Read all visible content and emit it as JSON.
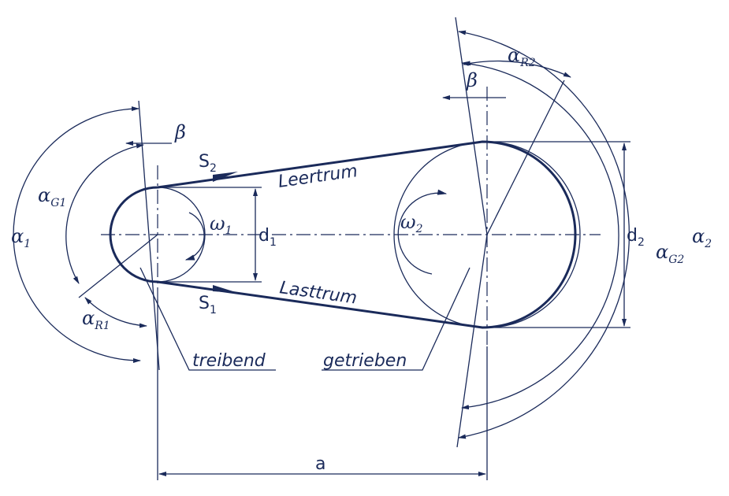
{
  "labels": {
    "s2": "S",
    "s2_sub": "2",
    "s1": "S",
    "s1_sub": "1",
    "leertrum": "Leertrum",
    "lasttrum": "Lasttrum",
    "treibend": "treibend",
    "getrieben": "getrieben",
    "omega1": "ω",
    "omega1_sub": "1",
    "omega2": "ω",
    "omega2_sub": "2",
    "d1": "d",
    "d1_sub": "1",
    "d2": "d",
    "d2_sub": "2",
    "a": "a",
    "beta_left": "β",
    "beta_right": "β",
    "alpha1": "α",
    "alpha1_sub": "1",
    "alphaG1": "α",
    "alphaG1_sub": "G1",
    "alphaR1": "α",
    "alphaR1_sub": "R1",
    "alpha2": "α",
    "alpha2_sub": "2",
    "alphaG2": "α",
    "alphaG2_sub": "G2",
    "alphaR2": "α",
    "alphaR2_sub": "R2"
  },
  "colors": {
    "ink": "#1a2a5a",
    "background": "#ffffff"
  }
}
